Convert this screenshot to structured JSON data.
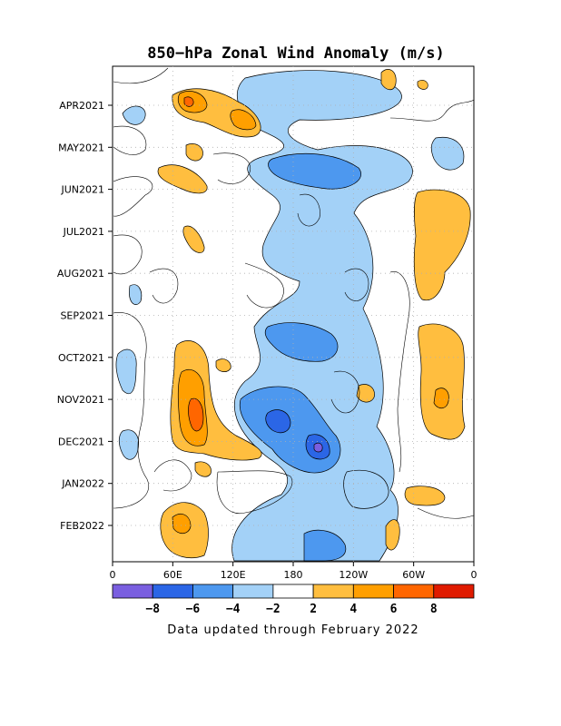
{
  "chart_data": {
    "type": "heatmap",
    "title": "850−hPa Zonal Wind Anomaly (m/s)",
    "xlabel": "",
    "ylabel": "",
    "x_ticks": [
      "0",
      "60E",
      "120E",
      "180",
      "120W",
      "60W",
      "0"
    ],
    "x_range": [
      0,
      360
    ],
    "y_ticks": [
      "APR2021",
      "MAY2021",
      "JUN2021",
      "JUL2021",
      "AUG2021",
      "SEP2021",
      "OCT2021",
      "NOV2021",
      "DEC2021",
      "JAN2022",
      "FEB2022"
    ],
    "color_levels": [
      -10,
      -8,
      -6,
      -4,
      -2,
      2,
      4,
      6,
      8,
      10
    ],
    "colorbar_labels": [
      "−8",
      "−6",
      "−4",
      "−2",
      "2",
      "4",
      "6",
      "8"
    ],
    "colorbar_colors": [
      "#7a5fe0",
      "#2b66e6",
      "#4d98ef",
      "#a3d1f7",
      "#ffffff",
      "#ffbe3f",
      "#ff9f00",
      "#ff6600",
      "#e01b00"
    ],
    "grid": true,
    "anomaly_features": [
      {
        "lon": 75,
        "date": "2021-11",
        "value": 7
      },
      {
        "lon": 80,
        "date": "2021-04",
        "value": 6
      },
      {
        "lon": 185,
        "date": "2021-12",
        "value": -8
      },
      {
        "lon": 165,
        "date": "2021-11",
        "value": -6
      },
      {
        "lon": 190,
        "date": "2021-05",
        "value": -5
      },
      {
        "lon": 320,
        "date": "2021-11",
        "value": 5
      },
      {
        "lon": 320,
        "date": "2021-07",
        "value": 3
      },
      {
        "lon": 70,
        "date": "2022-02",
        "value": 4
      },
      {
        "lon": 215,
        "date": "2022-02",
        "value": -4
      },
      {
        "lon": 155,
        "date": "2021-04",
        "value": -3
      }
    ]
  },
  "footer": "Data updated through February 2022"
}
